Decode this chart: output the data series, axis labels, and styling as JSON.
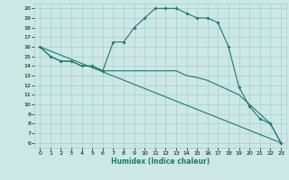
{
  "xlabel": "Humidex (Indice chaleur)",
  "bg_color": "#cce8e4",
  "grid_color": "#aacccc",
  "line_color": "#1a7a6e",
  "xlim": [
    -0.5,
    23.5
  ],
  "ylim": [
    5.5,
    20.5
  ],
  "yticks": [
    6,
    7,
    8,
    9,
    10,
    11,
    12,
    13,
    14,
    15,
    16,
    17,
    18,
    19,
    20
  ],
  "xticks": [
    0,
    1,
    2,
    3,
    4,
    5,
    6,
    7,
    8,
    9,
    10,
    11,
    12,
    13,
    14,
    15,
    16,
    17,
    18,
    19,
    20,
    21,
    22,
    23
  ],
  "series1_x": [
    0,
    1,
    2,
    3,
    4,
    5,
    6,
    7,
    8,
    9,
    10,
    11,
    12,
    13,
    14,
    15,
    16,
    17,
    18,
    19,
    20,
    21,
    22,
    23
  ],
  "series1_y": [
    16,
    15,
    14.5,
    14.5,
    14,
    14,
    13.5,
    16.5,
    16.5,
    18,
    19,
    20,
    20,
    20,
    19.5,
    19,
    19,
    18.5,
    16,
    11.8,
    9.8,
    8.5,
    8,
    6
  ],
  "series2_x": [
    0,
    1,
    2,
    3,
    4,
    5,
    6,
    7,
    8,
    9,
    10,
    11,
    12,
    13,
    14,
    15,
    16,
    17,
    18,
    19,
    20,
    21,
    22,
    23
  ],
  "series2_y": [
    16,
    15,
    14.5,
    14.5,
    14,
    14,
    13.5,
    13.5,
    13.5,
    13.5,
    13.5,
    13.5,
    13.5,
    13.5,
    13.0,
    12.8,
    12.5,
    12.0,
    11.5,
    11.0,
    10.0,
    9.0,
    8.0,
    6.0
  ],
  "series3_x": [
    0,
    23
  ],
  "series3_y": [
    16,
    6
  ]
}
